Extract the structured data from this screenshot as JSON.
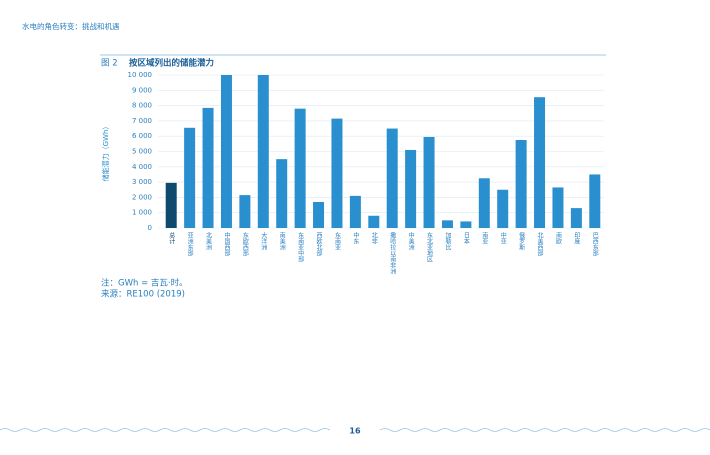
{
  "header": "水电的角色转变：挑战和机遇",
  "chart_data": {
    "type": "bar",
    "figure_number": "图 2",
    "title": "按区域列出的储能潜力",
    "y_label": "储能潜力（GWh）",
    "categories": [
      "总计",
      "亚洲东部",
      "北美洲",
      "中国西部",
      "东欧西部",
      "大洋洲",
      "南美洲",
      "东南亚中部",
      "西欧北部",
      "东南亚",
      "中东",
      "北非",
      "撒哈拉以南非洲",
      "中美洲",
      "东北亚地区",
      "加勒比",
      "日本",
      "南亚",
      "中亚",
      "俄罗斯",
      "北美西部",
      "南欧",
      "印度",
      "巴西东部"
    ],
    "values": [
      2950,
      6550,
      7850,
      10000,
      2150,
      10000,
      4500,
      7800,
      1700,
      7150,
      2100,
      800,
      6500,
      5100,
      5950,
      500,
      430,
      3250,
      2500,
      5750,
      8550,
      2650,
      1300,
      3500
    ],
    "colors": [
      "#0d4a6e",
      "#2a8fcf",
      "#2a8fcf",
      "#2a8fcf",
      "#2a8fcf",
      "#2a8fcf",
      "#2a8fcf",
      "#2a8fcf",
      "#2a8fcf",
      "#2a8fcf",
      "#2a8fcf",
      "#2a8fcf",
      "#2a8fcf",
      "#2a8fcf",
      "#2a8fcf",
      "#2a8fcf",
      "#2a8fcf",
      "#2a8fcf",
      "#2a8fcf",
      "#2a8fcf",
      "#2a8fcf",
      "#2a8fcf",
      "#2a8fcf",
      "#2a8fcf"
    ],
    "ylim": [
      0,
      10000
    ],
    "yticks": [
      0,
      {
        "value": 1000,
        "label": "1 000"
      },
      {
        "value": 2000,
        "label": "2 000"
      },
      {
        "value": 3000,
        "label": "3 000"
      },
      {
        "value": 4000,
        "label": "4 000"
      },
      {
        "value": 5000,
        "label": "5 000"
      },
      {
        "value": 6000,
        "label": "6 000"
      },
      {
        "value": 7000,
        "label": "7 000"
      },
      {
        "value": 8000,
        "label": "8 000"
      },
      {
        "value": 9000,
        "label": "9 000"
      },
      {
        "value": 10000,
        "label": "10 000"
      }
    ],
    "grid": true,
    "notes": [
      "注：GWh = 吉瓦·时。",
      "来源：RE100 (2019)"
    ]
  },
  "page_number": "16"
}
